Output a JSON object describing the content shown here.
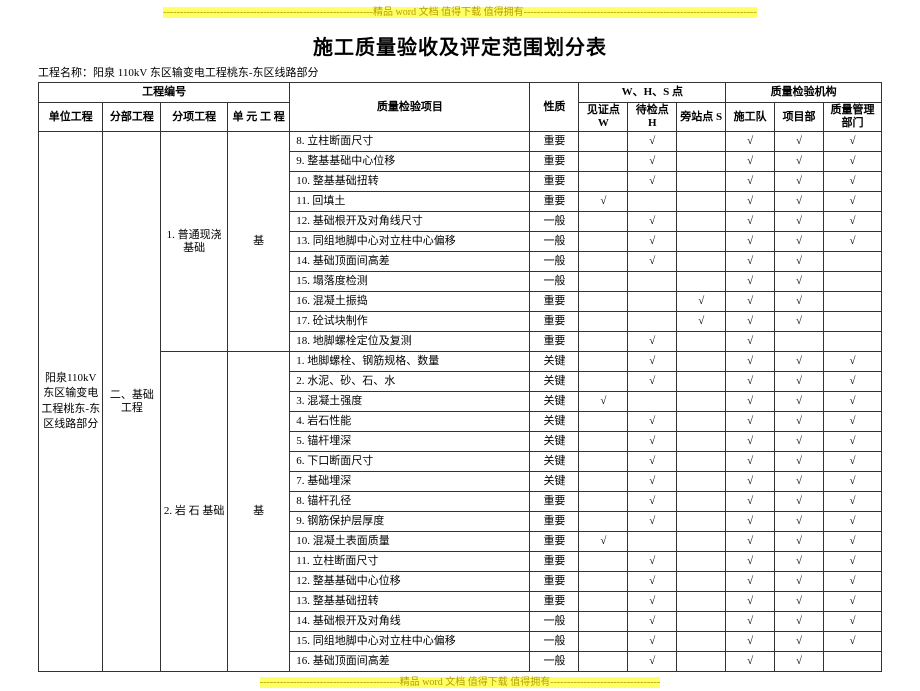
{
  "banner_top": "---------------------------------------------------------------精品 word 文档  值得下载  值得拥有----------------------------------------------------------------------",
  "banner_bottom": "------------------------------------------精品 word 文档  值得下载  值得拥有---------------------------------",
  "title": "施工质量验收及评定范围划分表",
  "project_label": "工程名称：",
  "project_name": "阳泉 110kV 东区输变电工程桃东-东区线路部分",
  "project_no_label": "工程编号",
  "header": {
    "unit": "单位工程",
    "section": "分部工程",
    "subsection": "分项工程",
    "unitwork": "单 元 工 程",
    "inspect_item": "质量检验项目",
    "nature": "性质",
    "whs_group": "W、H、S 点",
    "witness": "见证点 W",
    "hold": "待检点 H",
    "side": "旁站点 S",
    "org_group": "质量检验机构",
    "team": "施工队",
    "dept": "项目部",
    "mgmt": "质量管理部门"
  },
  "unit_project": "阳泉110kV 东区输变电工程桃东-东区线路部分",
  "section_project": "二、基础工程",
  "sub1": "1. 普通现浇基础",
  "sub2": "2. 岩 石 基础",
  "unitwork1": "基",
  "unitwork2": "基",
  "check": "√",
  "rows": [
    {
      "no": "8.",
      "item": "立柱断面尺寸",
      "nat": "重要",
      "W": "",
      "H": "√",
      "S": "",
      "T": "√",
      "D": "√",
      "M": "√"
    },
    {
      "no": "9.",
      "item": "整基基础中心位移",
      "nat": "重要",
      "W": "",
      "H": "√",
      "S": "",
      "T": "√",
      "D": "√",
      "M": "√"
    },
    {
      "no": "10.",
      "item": "整基基础扭转",
      "nat": "重要",
      "W": "",
      "H": "√",
      "S": "",
      "T": "√",
      "D": "√",
      "M": "√"
    },
    {
      "no": "11.",
      "item": "回填土",
      "nat": "重要",
      "W": "√",
      "H": "",
      "S": "",
      "T": "√",
      "D": "√",
      "M": "√"
    },
    {
      "no": "12.",
      "item": "基础根开及对角线尺寸",
      "nat": "一般",
      "W": "",
      "H": "√",
      "S": "",
      "T": "√",
      "D": "√",
      "M": "√"
    },
    {
      "no": "13.",
      "item": "同组地脚中心对立柱中心偏移",
      "nat": "一般",
      "W": "",
      "H": "√",
      "S": "",
      "T": "√",
      "D": "√",
      "M": "√"
    },
    {
      "no": "14.",
      "item": "基础顶面间高差",
      "nat": "一般",
      "W": "",
      "H": "√",
      "S": "",
      "T": "√",
      "D": "√",
      "M": ""
    },
    {
      "no": "15.",
      "item": "塌落度检测",
      "nat": "一般",
      "W": "",
      "H": "",
      "S": "",
      "T": "√",
      "D": "√",
      "M": ""
    },
    {
      "no": "16.",
      "item": "混凝土振捣",
      "nat": "重要",
      "W": "",
      "H": "",
      "S": "√",
      "T": "√",
      "D": "√",
      "M": ""
    },
    {
      "no": "17.",
      "item": "砼试块制作",
      "nat": "重要",
      "W": "",
      "H": "",
      "S": "√",
      "T": "√",
      "D": "√",
      "M": ""
    },
    {
      "no": "18.",
      "item": "地脚螺栓定位及复测",
      "nat": "重要",
      "W": "",
      "H": "√",
      "S": "",
      "T": "√",
      "D": "",
      "M": ""
    },
    {
      "no": "1.",
      "item": "地脚螺栓、钢筋规格、数量",
      "nat": "关键",
      "W": "",
      "H": "√",
      "S": "",
      "T": "√",
      "D": "√",
      "M": "√"
    },
    {
      "no": "2.",
      "item": "水泥、砂、石、水",
      "nat": "关键",
      "W": "",
      "H": "√",
      "S": "",
      "T": "√",
      "D": "√",
      "M": "√"
    },
    {
      "no": "3.",
      "item": "混凝土强度",
      "nat": "关键",
      "W": "√",
      "H": "",
      "S": "",
      "T": "√",
      "D": "√",
      "M": "√"
    },
    {
      "no": "4.",
      "item": "岩石性能",
      "nat": "关键",
      "W": "",
      "H": "√",
      "S": "",
      "T": "√",
      "D": "√",
      "M": "√"
    },
    {
      "no": "5.",
      "item": "锚杆埋深",
      "nat": "关键",
      "W": "",
      "H": "√",
      "S": "",
      "T": "√",
      "D": "√",
      "M": "√"
    },
    {
      "no": "6.",
      "item": "下口断面尺寸",
      "nat": "关键",
      "W": "",
      "H": "√",
      "S": "",
      "T": "√",
      "D": "√",
      "M": "√"
    },
    {
      "no": "7.",
      "item": "基础埋深",
      "nat": "关键",
      "W": "",
      "H": "√",
      "S": "",
      "T": "√",
      "D": "√",
      "M": "√"
    },
    {
      "no": "8.",
      "item": "锚杆孔径",
      "nat": "重要",
      "W": "",
      "H": "√",
      "S": "",
      "T": "√",
      "D": "√",
      "M": "√"
    },
    {
      "no": "9.",
      "item": "钢筋保护层厚度",
      "nat": "重要",
      "W": "",
      "H": "√",
      "S": "",
      "T": "√",
      "D": "√",
      "M": "√"
    },
    {
      "no": "10.",
      "item": "混凝土表面质量",
      "nat": "重要",
      "W": "√",
      "H": "",
      "S": "",
      "T": "√",
      "D": "√",
      "M": "√"
    },
    {
      "no": "11.",
      "item": "立柱断面尺寸",
      "nat": "重要",
      "W": "",
      "H": "√",
      "S": "",
      "T": "√",
      "D": "√",
      "M": "√"
    },
    {
      "no": "12.",
      "item": "整基基础中心位移",
      "nat": "重要",
      "W": "",
      "H": "√",
      "S": "",
      "T": "√",
      "D": "√",
      "M": "√"
    },
    {
      "no": "13.",
      "item": "整基基础扭转",
      "nat": "重要",
      "W": "",
      "H": "√",
      "S": "",
      "T": "√",
      "D": "√",
      "M": "√"
    },
    {
      "no": "14.",
      "item": "基础根开及对角线",
      "nat": "一般",
      "W": "",
      "H": "√",
      "S": "",
      "T": "√",
      "D": "√",
      "M": "√"
    },
    {
      "no": "15.",
      "item": "同组地脚中心对立柱中心偏移",
      "nat": "一般",
      "W": "",
      "H": "√",
      "S": "",
      "T": "√",
      "D": "√",
      "M": "√"
    },
    {
      "no": "16.",
      "item": "基础顶面间高差",
      "nat": "一般",
      "W": "",
      "H": "√",
      "S": "",
      "T": "√",
      "D": "√",
      "M": ""
    }
  ]
}
